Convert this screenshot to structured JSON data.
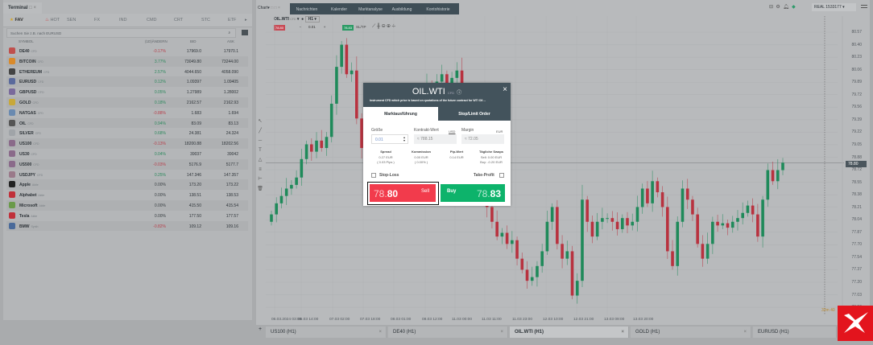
{
  "terminal": {
    "tab": "Terminal",
    "categories": [
      "FAV",
      "HOT",
      "SEN",
      "FX",
      "IND",
      "CMD",
      "CRT",
      "STC",
      "ETF"
    ],
    "search_placeholder": "Suchen Sie z.B. nach EURUSD",
    "headers": {
      "symbol": "SYMBOL",
      "change": "(1D)ÄNDERN",
      "bid": "BID",
      "ask": "ASK"
    },
    "rows": [
      {
        "symbol": "DE40",
        "type": "CFD",
        "change": "-0.17%",
        "bid": "17969.0",
        "ask": "17970.1",
        "dir": "neg",
        "icon": "flag-de-icon",
        "color": "#c0504d"
      },
      {
        "symbol": "BITCOIN",
        "type": "CFD",
        "change": "3.77%",
        "bid": "73049.80",
        "ask": "73244.00",
        "dir": "pos",
        "icon": "bitcoin-icon",
        "color": "#d98a2b"
      },
      {
        "symbol": "ETHEREUM",
        "type": "CFD",
        "change": "2.57%",
        "bid": "4044.650",
        "ask": "4058.090",
        "dir": "pos",
        "icon": "ethereum-icon",
        "color": "#444"
      },
      {
        "symbol": "EURUSD",
        "type": "CFD",
        "change": "0.12%",
        "bid": "1.09397",
        "ask": "1.09405",
        "dir": "pos",
        "icon": "flag-eu-us-icon",
        "color": "#5a6a9c"
      },
      {
        "symbol": "GBPUSD",
        "type": "CFD",
        "change": "0.05%",
        "bid": "1.27989",
        "ask": "1.28002",
        "dir": "pos",
        "icon": "flag-gb-us-icon",
        "color": "#7a6a9c"
      },
      {
        "symbol": "GOLD",
        "type": "CFD",
        "change": "0.18%",
        "bid": "2162.57",
        "ask": "2162.93",
        "dir": "pos",
        "icon": "gold-icon",
        "color": "#c8a83a"
      },
      {
        "symbol": "NATGAS",
        "type": "CFD",
        "change": "-0.88%",
        "bid": "1.683",
        "ask": "1.694",
        "dir": "neg",
        "icon": "natgas-icon",
        "color": "#6a8ab0"
      },
      {
        "symbol": "OIL",
        "type": "CFD",
        "change": "0.94%",
        "bid": "83.09",
        "ask": "83.13",
        "dir": "pos",
        "icon": "oil-icon",
        "color": "#555"
      },
      {
        "symbol": "SILVER",
        "type": "CFD",
        "change": "0.68%",
        "bid": "24.381",
        "ask": "24.324",
        "dir": "pos",
        "icon": "silver-icon",
        "color": "#a0a4a8"
      },
      {
        "symbol": "US100",
        "type": "CFD",
        "change": "-0.13%",
        "bid": "18200.88",
        "ask": "18202.56",
        "dir": "neg",
        "icon": "flag-us-icon",
        "color": "#8a6a8a"
      },
      {
        "symbol": "US30",
        "type": "CFD",
        "change": "0.04%",
        "bid": "39037",
        "ask": "39042",
        "dir": "pos",
        "icon": "flag-us-icon",
        "color": "#8a6a8a"
      },
      {
        "symbol": "US500",
        "type": "CFD",
        "change": "-0.03%",
        "bid": "5176.9",
        "ask": "5177.7",
        "dir": "neg",
        "icon": "flag-us-icon",
        "color": "#8a6a8a"
      },
      {
        "symbol": "USDJPY",
        "type": "CFD",
        "change": "0.25%",
        "bid": "147.346",
        "ask": "147.357",
        "dir": "pos",
        "icon": "flag-us-jp-icon",
        "color": "#9a7a8a"
      },
      {
        "symbol": "Apple",
        "type": "Aktie",
        "change": "0.00%",
        "bid": "173.20",
        "ask": "173.22",
        "dir": "neu",
        "icon": "apple-icon",
        "color": "#222"
      },
      {
        "symbol": "Alphabet",
        "type": "Aktie",
        "change": "0.00%",
        "bid": "138.51",
        "ask": "138.53",
        "dir": "neu",
        "icon": "alphabet-icon",
        "color": "#c0303a"
      },
      {
        "symbol": "Microsoft",
        "type": "Aktie",
        "change": "0.00%",
        "bid": "415.50",
        "ask": "415.54",
        "dir": "neu",
        "icon": "microsoft-icon",
        "color": "#6a9a4a"
      },
      {
        "symbol": "Tesla",
        "type": "Aktie",
        "change": "0.00%",
        "bid": "177.50",
        "ask": "177.57",
        "dir": "neu",
        "icon": "tesla-icon",
        "color": "#c0303a"
      },
      {
        "symbol": "BMW",
        "type": "Synth",
        "change": "-0.82%",
        "bid": "109.12",
        "ask": "109.16",
        "dir": "neg",
        "icon": "bmw-icon",
        "color": "#4a6a9a"
      }
    ]
  },
  "nav": {
    "chart": "Chart",
    "tabs": [
      "Nachrichten",
      "Kalender",
      "Marktanalyse",
      "Ausbildung",
      "Kontohistorie"
    ],
    "account": "REAL 1533177"
  },
  "chart_toolbar": {
    "symbol": "OIL.WTI",
    "type": "CFD",
    "interval": "H1",
    "sell": "78.80",
    "buy": "78.83",
    "volume": "0.01",
    "sltp": "SL/TP"
  },
  "price_axis": [
    "80.57",
    "80.40",
    "80.23",
    "80.06",
    "79.89",
    "79.72",
    "79.56",
    "79.39",
    "79.22",
    "79.05",
    "78.88",
    "78.72",
    "78.55",
    "78.38",
    "78.21",
    "78.04",
    "77.87",
    "77.70",
    "77.54",
    "77.37",
    "77.20",
    "77.03",
    "76.86"
  ],
  "current_price": "78.80",
  "time_axis": [
    "06.03.2024 03:00",
    "06.03 14:00",
    "07.03 02:00",
    "07.03 18:00",
    "08.03 01:00",
    "08.03 12:00",
    "11.03 00:00",
    "11.03 11:00",
    "11.03 23:00",
    "12.03 10:00",
    "12.03 21:00",
    "13.03 09:00",
    "13.03 20:00"
  ],
  "countdown": "32m 40",
  "candles_close": [
    78.1,
    78.25,
    78.35,
    78.45,
    78.5,
    78.6,
    78.85,
    79.05,
    78.95,
    79.1,
    79.0,
    79.15,
    79.6,
    80.1,
    80.4,
    80.0,
    80.05,
    79.4,
    79.0,
    78.75,
    78.95,
    79.05,
    78.98,
    79.2,
    79.25,
    79.35,
    79.2,
    79.4,
    79.55,
    79.7,
    79.6,
    79.85,
    79.7,
    79.9,
    80.0,
    79.8,
    79.95,
    80.05,
    79.6,
    79.1,
    78.7,
    78.4,
    78.55,
    78.2,
    78.0,
    77.8,
    77.85,
    77.7,
    77.75,
    77.5,
    77.35,
    77.2,
    77.25,
    77.4,
    77.6,
    78.0,
    78.2,
    77.7,
    77.5,
    77.6,
    77.0,
    77.2,
    78.3,
    78.0,
    77.8,
    78.0,
    78.05,
    78.05,
    78.0,
    77.9,
    78.05,
    77.95,
    78.0,
    78.2,
    78.45,
    78.25,
    78.55,
    78.4,
    78.2,
    77.6,
    77.4,
    78.0,
    78.45,
    78.3,
    78.1,
    77.7,
    77.5,
    77.7,
    78.0,
    77.95,
    77.98,
    77.92,
    78.0,
    78.05,
    78.12,
    78.22,
    78.1,
    77.8,
    78.3,
    78.7,
    78.55,
    78.7,
    78.8
  ],
  "bottom_tabs": [
    "US100 (H1)",
    "DE40 (H1)",
    "OIL.WTI (H1)",
    "GOLD (H1)",
    "EURUSD (H1)"
  ],
  "modal": {
    "title": "OIL.WTI",
    "type": "CFD",
    "description": "Instrument CFD which price is based on quotations of the future contract for WTI Oil ...",
    "tabs": [
      "Marktausführung",
      "Stop/Limit Order"
    ],
    "size_label": "Größe",
    "size_value": "0.01",
    "contract_label": "Kontrakt-Wert",
    "contract_currency": "USD",
    "contract_value": "≈ 788.15",
    "margin_label": "Margin",
    "margin_currency": "EUR",
    "margin_value": "≈ 72.05",
    "spread_label": "Spread",
    "spread_value": "0.27 EUR",
    "spread_pips": "( 0.03 Pips )",
    "commission_label": "Kommission",
    "commission_value": "0.00 EUR",
    "commission_pct": "( 0.00% )",
    "pip_label": "Pip-Wert",
    "pip_value": "0.14 EUR",
    "swap_label": "Tägliche Swaps",
    "swap_sell": "Sell: 0.00 EUR",
    "swap_buy": "Buy: -0.20 EUR",
    "stop_loss": "Stop-Loss",
    "take_profit": "Take-Profit",
    "sell_label": "Sell",
    "sell_main": "78.",
    "sell_big": "80",
    "buy_label": "Buy",
    "buy_main": "78.",
    "buy_big": "83"
  },
  "colors": {
    "sell": "#f23b4c",
    "buy": "#0db36b",
    "modal_header": "#43535c",
    "candle_up": "#1f8a5a",
    "candle_down": "#b8323f",
    "logo": "#e3141d"
  }
}
